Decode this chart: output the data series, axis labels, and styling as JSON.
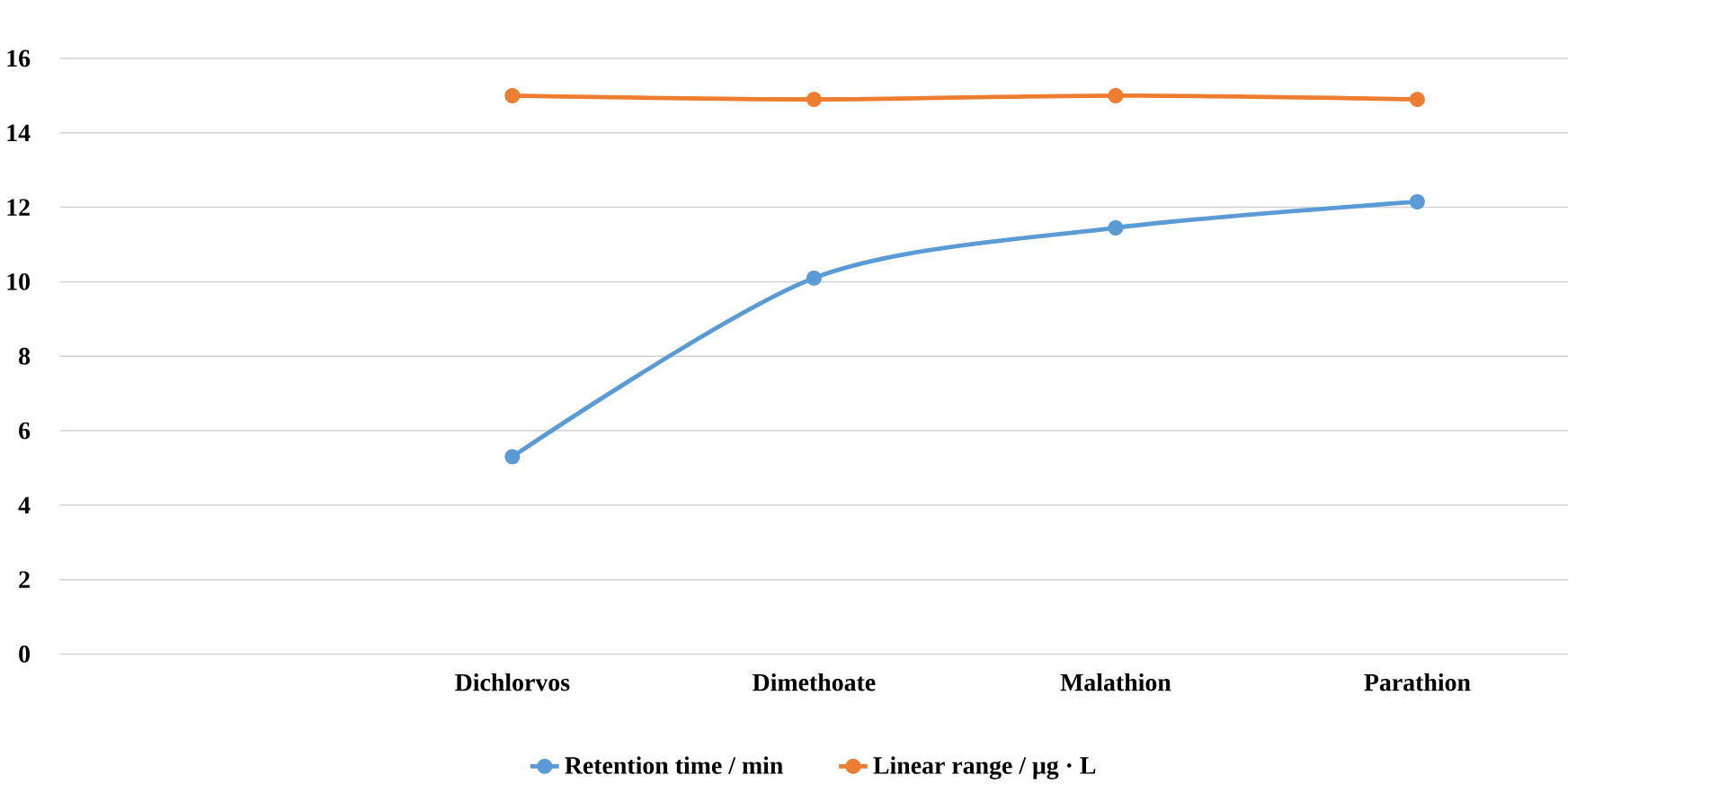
{
  "chart_data": {
    "type": "line",
    "categories": [
      null,
      "Dichlorvos",
      "Dimethoate",
      "Malathion",
      "Parathion"
    ],
    "series": [
      {
        "name": "Retention time / min",
        "color": "#5b9bd5",
        "values": [
          null,
          5.3,
          10.1,
          11.45,
          12.15
        ]
      },
      {
        "name": "Linear range / μg · L",
        "color": "#ed7d31",
        "values": [
          null,
          15.0,
          14.9,
          15.0,
          14.9
        ]
      }
    ],
    "ylim": [
      0,
      16
    ],
    "yticks": [
      0,
      2,
      4,
      6,
      8,
      10,
      12,
      14,
      16
    ],
    "grid": "y",
    "legend": "bottom",
    "marker": "circle"
  }
}
